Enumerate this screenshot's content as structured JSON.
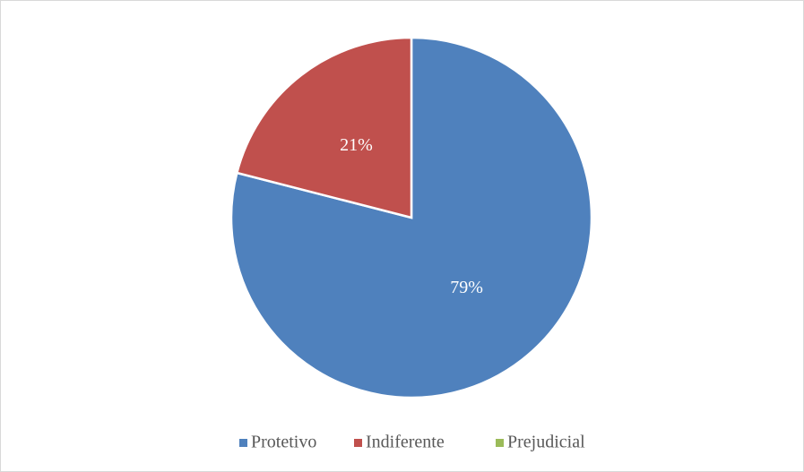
{
  "chart_data": {
    "type": "pie",
    "categories": [
      "Protetivo",
      "Indiferente",
      "Prejudicial"
    ],
    "values": [
      79,
      21,
      0
    ],
    "value_labels": [
      "79%",
      "21%",
      null
    ],
    "colors": [
      "#4f81bd",
      "#c0504d",
      "#9bbb59"
    ],
    "legend": "bottom"
  }
}
